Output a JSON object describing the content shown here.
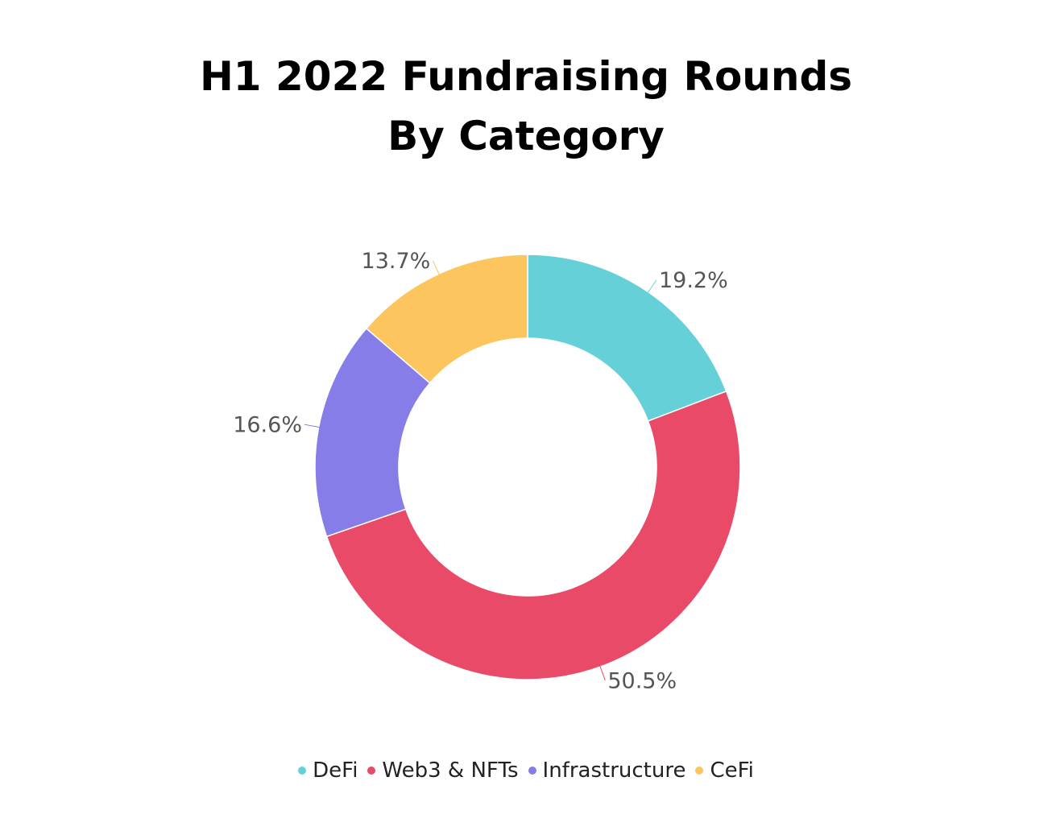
{
  "chart_data": {
    "type": "pie",
    "variant": "donut",
    "title_lines": [
      "H1 2022 Fundraising Rounds",
      "By Category"
    ],
    "categories": [
      "DeFi",
      "Web3 & NFTs",
      "Infrastructure",
      "CeFi"
    ],
    "values": [
      19.2,
      50.5,
      16.6,
      13.7
    ],
    "value_labels": [
      "19.2%",
      "50.5%",
      "16.6%",
      "13.7%"
    ],
    "colors": [
      "#66d0d9",
      "#e84a68",
      "#877de8",
      "#fdc55e"
    ],
    "legend_position": "bottom",
    "start_angle": "top",
    "direction": "clockwise"
  }
}
